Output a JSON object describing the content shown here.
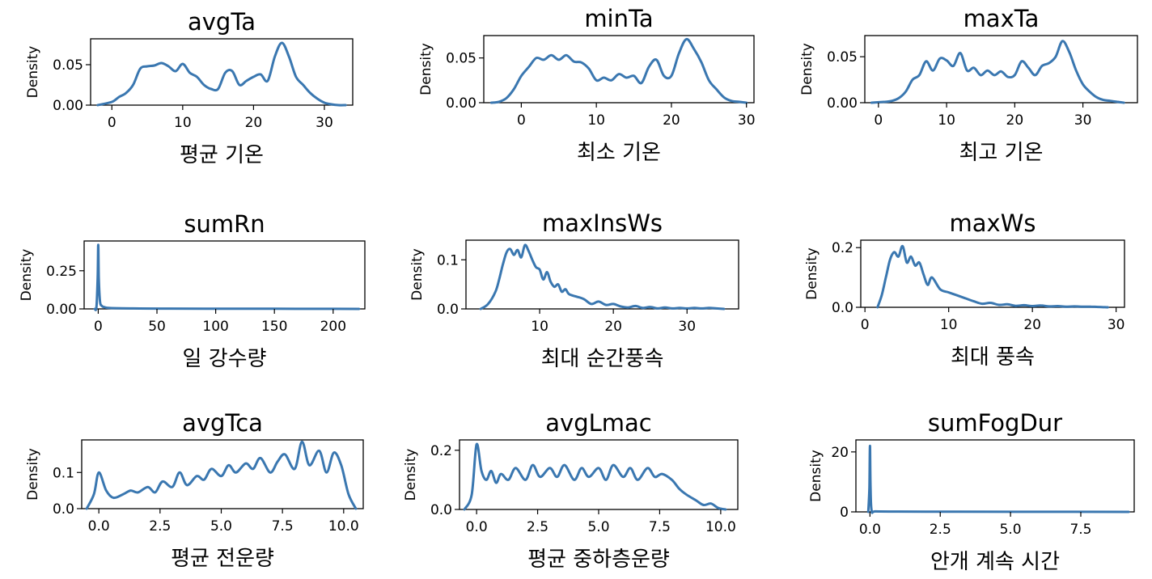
{
  "figure": {
    "line_color": "#3a77b0"
  },
  "chart_data": [
    {
      "type": "line",
      "title": "avgTa",
      "xlabel": "평균 기온",
      "ylabel": "Density",
      "xlim": [
        -3,
        34
      ],
      "ylim": [
        0,
        0.082
      ],
      "xticks": [
        0,
        10,
        20,
        30
      ],
      "xtick_labels": [
        "0",
        "10",
        "20",
        "30"
      ],
      "yticks": [
        0,
        0.05
      ],
      "ytick_labels": [
        "0.00",
        "0.05"
      ],
      "series": [
        {
          "x": [
            -2,
            0,
            1,
            2,
            3,
            4,
            5,
            6,
            7,
            8,
            9,
            10,
            11,
            12,
            13,
            14,
            15,
            16,
            17,
            18,
            19,
            20,
            21,
            22,
            23,
            24,
            25,
            26,
            27,
            28,
            29,
            30,
            31,
            32,
            33
          ],
          "y": [
            0,
            0.004,
            0.01,
            0.015,
            0.025,
            0.045,
            0.048,
            0.049,
            0.052,
            0.048,
            0.042,
            0.051,
            0.04,
            0.035,
            0.025,
            0.02,
            0.02,
            0.04,
            0.042,
            0.025,
            0.03,
            0.035,
            0.038,
            0.03,
            0.06,
            0.077,
            0.06,
            0.035,
            0.025,
            0.015,
            0.008,
            0.003,
            0.001,
            0,
            0
          ]
        }
      ]
    },
    {
      "type": "line",
      "title": "minTa",
      "xlabel": "최소 기온",
      "ylabel": "Density",
      "xlim": [
        -5,
        31
      ],
      "ylim": [
        0,
        0.075
      ],
      "xticks": [
        0,
        10,
        20,
        30
      ],
      "xtick_labels": [
        "0",
        "10",
        "20",
        "30"
      ],
      "yticks": [
        0,
        0.05
      ],
      "ytick_labels": [
        "0.00",
        "0.05"
      ],
      "series": [
        {
          "x": [
            -4,
            -3,
            -2,
            -1,
            0,
            1,
            2,
            3,
            4,
            5,
            6,
            7,
            8,
            9,
            10,
            11,
            12,
            13,
            14,
            15,
            16,
            17,
            18,
            19,
            20,
            21,
            22,
            23,
            24,
            25,
            26,
            27,
            28,
            29,
            30
          ],
          "y": [
            0,
            0.001,
            0.005,
            0.015,
            0.03,
            0.04,
            0.05,
            0.048,
            0.053,
            0.048,
            0.053,
            0.046,
            0.045,
            0.038,
            0.025,
            0.028,
            0.025,
            0.032,
            0.028,
            0.03,
            0.022,
            0.04,
            0.048,
            0.03,
            0.03,
            0.055,
            0.071,
            0.06,
            0.045,
            0.025,
            0.015,
            0.006,
            0.002,
            0.001,
            0
          ]
        }
      ]
    },
    {
      "type": "line",
      "title": "maxTa",
      "xlabel": "최고 기온",
      "ylabel": "Density",
      "xlim": [
        -2,
        38
      ],
      "ylim": [
        0,
        0.073
      ],
      "xticks": [
        0,
        10,
        20,
        30
      ],
      "xtick_labels": [
        "0",
        "10",
        "20",
        "30"
      ],
      "yticks": [
        0,
        0.05
      ],
      "ytick_labels": [
        "0.00",
        "0.05"
      ],
      "series": [
        {
          "x": [
            -1,
            1,
            2,
            3,
            4,
            5,
            6,
            7,
            8,
            9,
            10,
            11,
            12,
            13,
            14,
            15,
            16,
            17,
            18,
            19,
            20,
            21,
            22,
            23,
            24,
            25,
            26,
            27,
            28,
            29,
            30,
            31,
            32,
            33,
            34,
            35,
            36
          ],
          "y": [
            0,
            0.001,
            0.002,
            0.005,
            0.012,
            0.025,
            0.03,
            0.045,
            0.035,
            0.048,
            0.046,
            0.04,
            0.054,
            0.035,
            0.038,
            0.03,
            0.035,
            0.03,
            0.034,
            0.028,
            0.03,
            0.045,
            0.038,
            0.03,
            0.04,
            0.043,
            0.05,
            0.067,
            0.055,
            0.035,
            0.02,
            0.012,
            0.006,
            0.003,
            0.002,
            0.001,
            0
          ]
        }
      ]
    },
    {
      "type": "line",
      "title": "sumRn",
      "xlabel": "일 강수량",
      "ylabel": "Density",
      "xlim": [
        -12,
        227
      ],
      "ylim": [
        0,
        0.445
      ],
      "xticks": [
        0,
        50,
        100,
        150,
        200
      ],
      "xtick_labels": [
        "0",
        "50",
        "100",
        "150",
        "200"
      ],
      "yticks": [
        0,
        0.25
      ],
      "ytick_labels": [
        "0.00",
        "0.25"
      ],
      "series": [
        {
          "x": [
            -3,
            -1.5,
            -0.5,
            0,
            0.5,
            1.5,
            3,
            5,
            10,
            30,
            60,
            100,
            150,
            200,
            222
          ],
          "y": [
            0,
            0.01,
            0.2,
            0.42,
            0.2,
            0.05,
            0.02,
            0.012,
            0.006,
            0.003,
            0.002,
            0.001,
            0.001,
            0.0005,
            0
          ]
        }
      ]
    },
    {
      "type": "line",
      "title": "maxInsWs",
      "xlabel": "최대 순간풍속",
      "ylabel": "Density",
      "xlim": [
        0,
        37
      ],
      "ylim": [
        0,
        0.14
      ],
      "xticks": [
        10,
        20,
        30
      ],
      "xtick_labels": [
        "10",
        "20",
        "30"
      ],
      "yticks": [
        0,
        0.1
      ],
      "ytick_labels": [
        "0.0",
        "0.1"
      ],
      "series": [
        {
          "x": [
            2,
            3,
            4,
            4.5,
            5,
            5.5,
            6,
            6.5,
            7,
            7.5,
            8,
            8.5,
            9,
            9.5,
            10,
            10.5,
            11,
            11.5,
            12,
            12.5,
            13,
            13.5,
            14,
            15,
            16,
            17,
            18,
            19,
            20,
            21,
            22,
            23,
            24,
            25,
            26,
            27,
            28,
            29,
            30,
            31,
            32,
            33,
            34,
            35
          ],
          "y": [
            0,
            0.01,
            0.035,
            0.06,
            0.09,
            0.115,
            0.122,
            0.11,
            0.12,
            0.105,
            0.13,
            0.118,
            0.1,
            0.085,
            0.08,
            0.06,
            0.075,
            0.055,
            0.045,
            0.05,
            0.035,
            0.04,
            0.03,
            0.025,
            0.02,
            0.01,
            0.015,
            0.008,
            0.01,
            0.005,
            0.003,
            0.006,
            0.002,
            0.004,
            0.001,
            0.003,
            0.001,
            0.002,
            0.001,
            0.002,
            0.001,
            0.002,
            0.001,
            0
          ]
        }
      ]
    },
    {
      "type": "line",
      "title": "maxWs",
      "xlabel": "최대 풍속",
      "ylabel": "Density",
      "xlim": [
        -0.5,
        31
      ],
      "ylim": [
        0,
        0.225
      ],
      "xticks": [
        0,
        10,
        20,
        30
      ],
      "xtick_labels": [
        "0",
        "10",
        "20",
        "30"
      ],
      "yticks": [
        0,
        0.2
      ],
      "ytick_labels": [
        "0.0",
        "0.2"
      ],
      "series": [
        {
          "x": [
            1.5,
            2,
            2.5,
            3,
            3.5,
            4,
            4.5,
            5,
            5.5,
            6,
            6.5,
            7,
            7.5,
            8,
            9,
            10,
            11,
            12,
            13,
            14,
            15,
            16,
            17,
            18,
            19,
            20,
            21,
            22,
            23,
            24,
            25,
            26,
            27,
            28,
            29
          ],
          "y": [
            0,
            0.04,
            0.1,
            0.16,
            0.185,
            0.17,
            0.205,
            0.15,
            0.17,
            0.14,
            0.15,
            0.11,
            0.075,
            0.1,
            0.06,
            0.05,
            0.04,
            0.03,
            0.02,
            0.012,
            0.015,
            0.008,
            0.01,
            0.005,
            0.007,
            0.004,
            0.006,
            0.003,
            0.004,
            0.002,
            0.003,
            0.002,
            0.002,
            0.001,
            0
          ]
        }
      ]
    },
    {
      "type": "line",
      "title": "avgTca",
      "xlabel": "평균 전운량",
      "ylabel": "Density",
      "xlim": [
        -0.7,
        10.8
      ],
      "ylim": [
        0,
        0.19
      ],
      "xticks": [
        0,
        2.5,
        5,
        7.5,
        10
      ],
      "xtick_labels": [
        "0.0",
        "2.5",
        "5.0",
        "7.5",
        "10.0"
      ],
      "yticks": [
        0,
        0.1
      ],
      "ytick_labels": [
        "0.0",
        "0.1"
      ],
      "series": [
        {
          "x": [
            -0.5,
            -0.2,
            0,
            0.3,
            0.6,
            1,
            1.3,
            1.6,
            2,
            2.3,
            2.6,
            3,
            3.3,
            3.6,
            4,
            4.3,
            4.6,
            5,
            5.3,
            5.6,
            6,
            6.3,
            6.6,
            7,
            7.3,
            7.6,
            8,
            8.3,
            8.6,
            9,
            9.3,
            9.6,
            9.9,
            10.2,
            10.5
          ],
          "y": [
            0,
            0.04,
            0.1,
            0.05,
            0.03,
            0.04,
            0.05,
            0.045,
            0.06,
            0.045,
            0.075,
            0.06,
            0.1,
            0.065,
            0.09,
            0.08,
            0.11,
            0.09,
            0.12,
            0.1,
            0.125,
            0.11,
            0.14,
            0.1,
            0.13,
            0.15,
            0.11,
            0.185,
            0.12,
            0.16,
            0.1,
            0.155,
            0.12,
            0.04,
            0
          ]
        }
      ]
    },
    {
      "type": "line",
      "title": "avgLmac",
      "xlabel": "평균 중하층운량",
      "ylabel": "Density",
      "xlim": [
        -0.7,
        10.7
      ],
      "ylim": [
        0,
        0.235
      ],
      "xticks": [
        0,
        2.5,
        5,
        7.5,
        10
      ],
      "xtick_labels": [
        "0.0",
        "2.5",
        "5.0",
        "7.5",
        "10.0"
      ],
      "yticks": [
        0,
        0.2
      ],
      "ytick_labels": [
        "0.0",
        "0.2"
      ],
      "series": [
        {
          "x": [
            -0.5,
            -0.2,
            0,
            0.2,
            0.4,
            0.6,
            0.8,
            1,
            1.3,
            1.6,
            2,
            2.3,
            2.6,
            3,
            3.3,
            3.6,
            4,
            4.3,
            4.6,
            5,
            5.3,
            5.6,
            6,
            6.3,
            6.6,
            7,
            7.3,
            7.6,
            8,
            8.3,
            8.6,
            9,
            9.3,
            9.6,
            9.9,
            10.2
          ],
          "y": [
            0,
            0.05,
            0.22,
            0.13,
            0.1,
            0.13,
            0.09,
            0.12,
            0.1,
            0.14,
            0.1,
            0.15,
            0.11,
            0.14,
            0.11,
            0.15,
            0.1,
            0.14,
            0.11,
            0.14,
            0.1,
            0.15,
            0.11,
            0.14,
            0.1,
            0.14,
            0.11,
            0.12,
            0.1,
            0.07,
            0.05,
            0.03,
            0.015,
            0.02,
            0.005,
            0
          ]
        }
      ]
    },
    {
      "type": "line",
      "title": "sumFogDur",
      "xlabel": "안개 계속 시간",
      "ylabel": "Density",
      "xlim": [
        -0.5,
        9.4
      ],
      "ylim": [
        0,
        24
      ],
      "xticks": [
        0,
        2.5,
        5,
        7.5
      ],
      "xtick_labels": [
        "0.0",
        "2.5",
        "5.0",
        "7.5"
      ],
      "yticks": [
        0,
        20
      ],
      "ytick_labels": [
        "0",
        "20"
      ],
      "series": [
        {
          "x": [
            -0.06,
            -0.02,
            0,
            0.02,
            0.06,
            0.2,
            1,
            3,
            6,
            9.2
          ],
          "y": [
            0,
            8,
            22,
            8,
            0.3,
            0.15,
            0.1,
            0.05,
            0.03,
            0
          ]
        }
      ]
    }
  ]
}
